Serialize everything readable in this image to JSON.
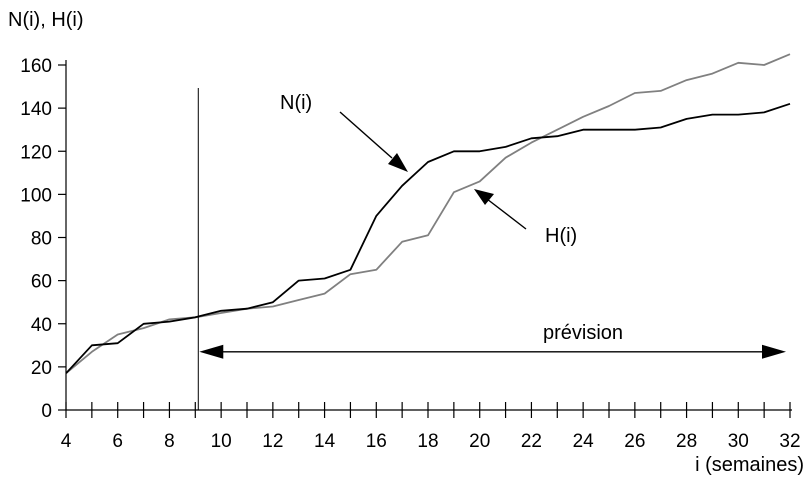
{
  "chart_data": {
    "type": "line",
    "ylabel": "N(i), H(i)",
    "xlabel": "i (semaines)",
    "xlim": [
      4,
      32
    ],
    "ylim": [
      0,
      160
    ],
    "x_ticks": [
      4,
      6,
      8,
      10,
      12,
      14,
      16,
      18,
      20,
      22,
      24,
      26,
      28,
      30,
      32
    ],
    "y_ticks": [
      0,
      20,
      40,
      60,
      80,
      100,
      120,
      140,
      160
    ],
    "x": [
      4,
      5,
      6,
      7,
      8,
      9,
      10,
      11,
      12,
      13,
      14,
      15,
      16,
      17,
      18,
      19,
      20,
      21,
      22,
      23,
      24,
      25,
      26,
      27,
      28,
      29,
      30,
      31,
      32
    ],
    "series": [
      {
        "name": "N(i)",
        "color": "#000000",
        "values": [
          17,
          30,
          31,
          40,
          41,
          43,
          46,
          47,
          50,
          60,
          61,
          65,
          90,
          104,
          115,
          120,
          120,
          122,
          126,
          127,
          130,
          130,
          130,
          131,
          135,
          137,
          137,
          138,
          142
        ]
      },
      {
        "name": "H(i)",
        "color": "#808080",
        "values": [
          17,
          27,
          35,
          38,
          42,
          43,
          45,
          47,
          48,
          51,
          54,
          63,
          65,
          78,
          81,
          101,
          106,
          117,
          124,
          130,
          136,
          141,
          147,
          148,
          153,
          156,
          161,
          160,
          165
        ]
      }
    ],
    "annotations": {
      "forecast_start_x": 9,
      "forecast_end_x": 32,
      "forecast_y": 27,
      "forecast_label": "prévision",
      "n_label": "N(i)",
      "h_label": "H(i)"
    }
  }
}
